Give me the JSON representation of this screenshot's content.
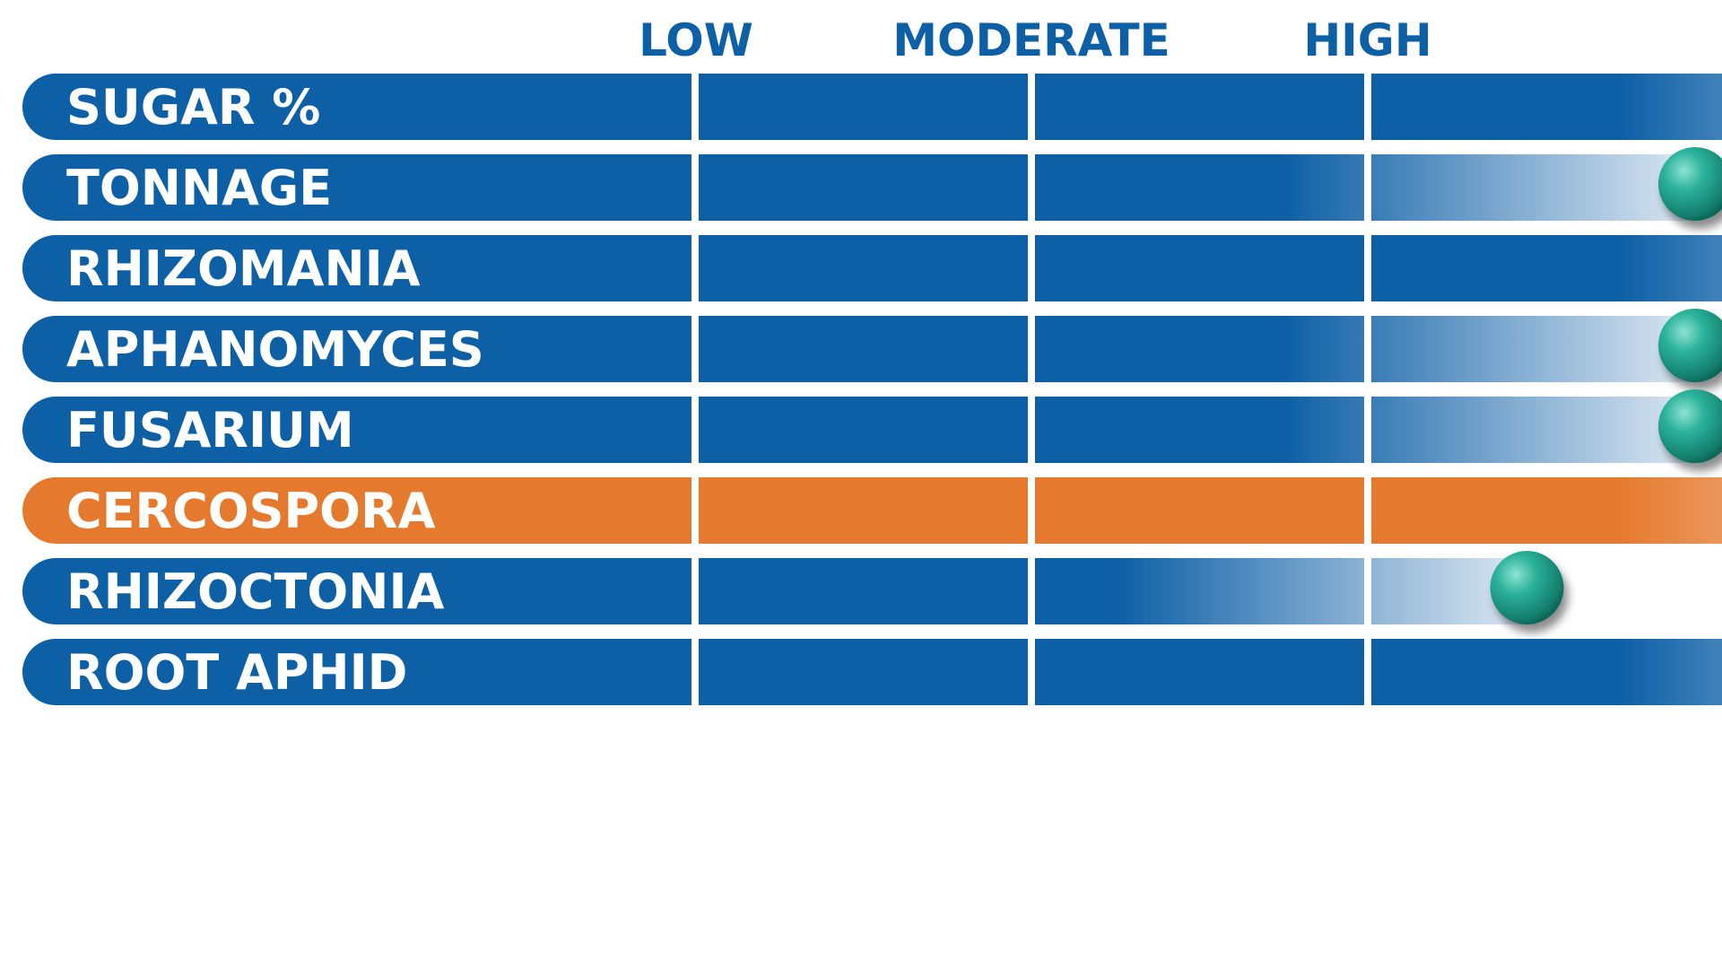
{
  "chart_data": {
    "type": "bar",
    "orientation": "horizontal",
    "scale": [
      "LOW",
      "MODERATE",
      "HIGH"
    ],
    "xlim": [
      0,
      4
    ],
    "categories": [
      "SUGAR %",
      "TONNAGE",
      "RHIZOMANIA",
      "APHANOMYCES",
      "FUSARIUM",
      "CERCOSPORA",
      "RHIZOCTONIA",
      "ROOT APHID"
    ],
    "values": [
      4,
      3,
      4,
      3,
      3,
      4,
      2.5,
      4
    ],
    "highlight": "CERCOSPORA",
    "grid": false,
    "legend": "none"
  },
  "colors": {
    "bar": "#0d5fa6",
    "bar_highlight": "#e57a2e",
    "label": "#0d5fa6",
    "marker": "#1fa58f",
    "background": "#ffffff"
  }
}
